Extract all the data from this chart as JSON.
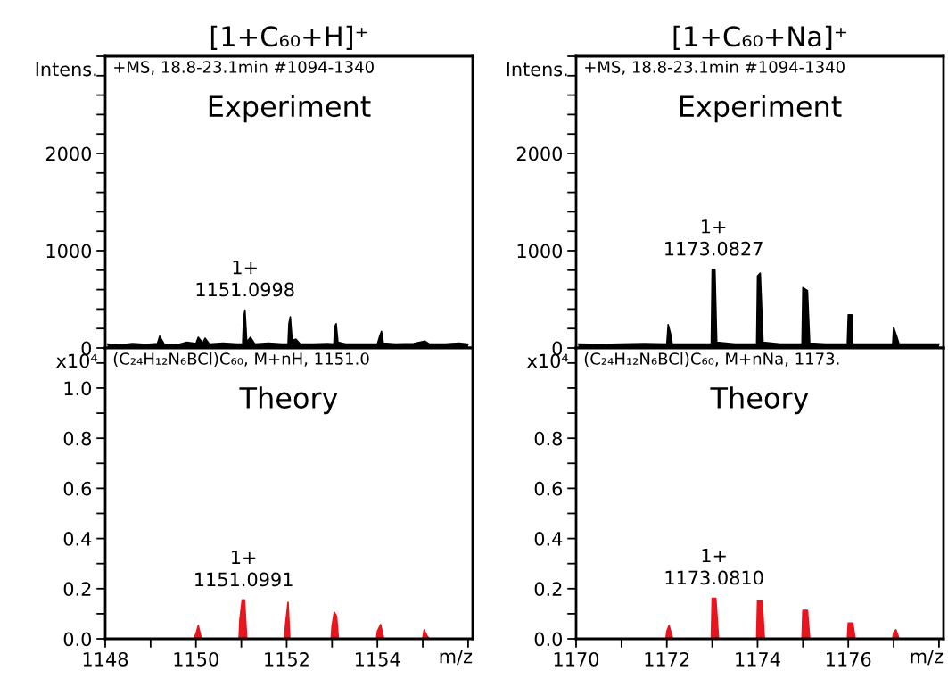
{
  "chart_data": [
    {
      "type": "area",
      "title": "[1+C₆₀+H]⁺",
      "ylabel": "Intens.",
      "tick_labels": "y",
      "xlim": [
        1148,
        1156.1
      ],
      "ylim": [
        0,
        3000
      ],
      "yticks": [
        0,
        {
          "value": 200,
          "label": null
        },
        {
          "value": 400,
          "label": null
        },
        {
          "value": 600,
          "label": null
        },
        {
          "value": 800,
          "label": null
        },
        1000,
        {
          "value": 1200,
          "label": null
        },
        {
          "value": 1400,
          "label": null
        },
        {
          "value": 1600,
          "label": null
        },
        {
          "value": 1800,
          "label": null
        },
        2000,
        {
          "value": 2200,
          "label": null
        },
        {
          "value": 2400,
          "label": null
        },
        {
          "value": 2600,
          "label": null
        },
        {
          "value": 2800,
          "label": null
        },
        {
          "value": 3000,
          "label": null
        }
      ],
      "series": [
        {
          "color": "#000000",
          "x": [
            1148.05,
            1148.3,
            1148.6,
            1148.9,
            1149.15,
            1149.2,
            1149.3,
            1149.6,
            1149.8,
            1150.0,
            1150.05,
            1150.15,
            1150.2,
            1150.3,
            1150.6,
            1150.9,
            1151.03,
            1151.05,
            1151.08,
            1151.12,
            1151.2,
            1151.3,
            1151.6,
            1151.9,
            1152.03,
            1152.05,
            1152.08,
            1152.12,
            1152.2,
            1152.3,
            1152.6,
            1152.9,
            1153.04,
            1153.06,
            1153.09,
            1153.13,
            1153.3,
            1153.6,
            1154.0,
            1154.05,
            1154.09,
            1154.13,
            1154.4,
            1154.8,
            1155.05,
            1155.15,
            1155.5,
            1155.8,
            1156.0
          ],
          "values": [
            40,
            30,
            45,
            35,
            45,
            120,
            40,
            35,
            60,
            45,
            110,
            50,
            100,
            40,
            50,
            40,
            40,
            300,
            390,
            60,
            110,
            40,
            50,
            40,
            40,
            250,
            320,
            80,
            90,
            40,
            40,
            45,
            40,
            220,
            250,
            60,
            40,
            40,
            40,
            120,
            170,
            50,
            40,
            45,
            70,
            40,
            40,
            50,
            40
          ]
        }
      ],
      "annotations": [
        "+MS, 18.8-23.1min #1094-1340",
        "Experiment",
        {
          "text": "1+\n1151.0998",
          "x": 1151.08,
          "y": 390
        }
      ]
    },
    {
      "type": "area",
      "title": "[1+C₆₀+Na]⁺",
      "ylabel": "Intens.",
      "tick_labels": "y",
      "xlim": [
        1170,
        1178.1
      ],
      "ylim": [
        0,
        3000
      ],
      "yticks": [
        0,
        {
          "value": 200,
          "label": null
        },
        {
          "value": 400,
          "label": null
        },
        {
          "value": 600,
          "label": null
        },
        {
          "value": 800,
          "label": null
        },
        1000,
        {
          "value": 1200,
          "label": null
        },
        {
          "value": 1400,
          "label": null
        },
        {
          "value": 1600,
          "label": null
        },
        {
          "value": 1800,
          "label": null
        },
        2000,
        {
          "value": 2200,
          "label": null
        },
        {
          "value": 2400,
          "label": null
        },
        {
          "value": 2600,
          "label": null
        },
        {
          "value": 2800,
          "label": null
        },
        {
          "value": 3000,
          "label": null
        }
      ],
      "series": [
        {
          "color": "#000000",
          "x": [
            1170.05,
            1170.5,
            1171.0,
            1171.5,
            1172.0,
            1172.03,
            1172.08,
            1172.12,
            1172.5,
            1172.98,
            1173.0,
            1173.06,
            1173.1,
            1173.5,
            1173.98,
            1174.0,
            1174.06,
            1174.12,
            1174.5,
            1174.98,
            1175.0,
            1175.1,
            1175.15,
            1175.5,
            1175.98,
            1176.0,
            1176.08,
            1176.1,
            1176.5,
            1176.98,
            1177.0,
            1177.08,
            1177.12,
            1177.5,
            1178.0
          ],
          "values": [
            40,
            35,
            40,
            45,
            40,
            240,
            150,
            40,
            40,
            40,
            810,
            810,
            60,
            40,
            40,
            740,
            770,
            60,
            40,
            40,
            620,
            590,
            50,
            40,
            40,
            340,
            340,
            40,
            40,
            40,
            210,
            100,
            40,
            40,
            40
          ]
        }
      ],
      "annotations": [
        "+MS, 18.8-23.1min #1094-1340",
        "Experiment",
        {
          "text": "1+\n1173.0827",
          "x": 1173.03,
          "y": 810
        }
      ]
    },
    {
      "type": "area",
      "ylabel": "x10⁴",
      "xlabel": "m/z",
      "xlim": [
        1148,
        1156.1
      ],
      "ylim": [
        0,
        1.16
      ],
      "xticks": [
        1148,
        {
          "value": 1149,
          "label": null
        },
        1150,
        {
          "value": 1151,
          "label": null
        },
        1152,
        {
          "value": 1153,
          "label": null
        },
        1154,
        {
          "value": 1155,
          "label": null
        },
        {
          "value": 1156,
          "label": null
        }
      ],
      "yticks": [
        {
          "value": 0,
          "label": "0.0"
        },
        {
          "value": 0.1,
          "label": null
        },
        {
          "value": 0.2,
          "label": "0.2"
        },
        {
          "value": 0.3,
          "label": null
        },
        {
          "value": 0.4,
          "label": "0.4"
        },
        {
          "value": 0.5,
          "label": null
        },
        {
          "value": 0.6,
          "label": "0.6"
        },
        {
          "value": 0.7,
          "label": null
        },
        {
          "value": 0.8,
          "label": "0.8"
        },
        {
          "value": 0.9,
          "label": null
        },
        {
          "value": 1.0,
          "label": "1.0"
        },
        {
          "value": 1.1,
          "label": null
        }
      ],
      "series": [
        {
          "color": "#e8141e",
          "x": [
            1148.0,
            1149.95,
            1150.0,
            1150.05,
            1150.12,
            1150.95,
            1150.97,
            1151.02,
            1151.07,
            1151.12,
            1151.95,
            1151.98,
            1152.03,
            1152.07,
            1152.98,
            1153.0,
            1153.05,
            1153.1,
            1153.14,
            1153.98,
            1154.0,
            1154.07,
            1154.14,
            1155.0,
            1155.03,
            1155.1,
            1155.15,
            1156.0
          ],
          "values": [
            0,
            0,
            0.02,
            0.053,
            0,
            0,
            0.08,
            0.155,
            0.155,
            0,
            0,
            0.065,
            0.146,
            0,
            0,
            0.05,
            0.106,
            0.09,
            0,
            0,
            0.03,
            0.057,
            0,
            0,
            0.035,
            0.01,
            0,
            0
          ]
        }
      ],
      "annotations": [
        "(C₂₄H₁₂N₆BCl)C₆₀, M+nH, 1151.0",
        "Theory",
        {
          "text": "1+\n1151.0991",
          "x": 1151.05,
          "y": 0.155
        }
      ]
    },
    {
      "type": "area",
      "ylabel": "x10⁴",
      "xlabel": "m/z",
      "xlim": [
        1170,
        1178.1
      ],
      "ylim": [
        0,
        1.16
      ],
      "xticks": [
        1170,
        {
          "value": 1171,
          "label": null
        },
        1172,
        {
          "value": 1173,
          "label": null
        },
        1174,
        {
          "value": 1175,
          "label": null
        },
        1176,
        {
          "value": 1177,
          "label": null
        },
        {
          "value": 1178,
          "label": null
        }
      ],
      "yticks": [
        {
          "value": 0,
          "label": "0.0"
        },
        {
          "value": 0.1,
          "label": null
        },
        {
          "value": 0.2,
          "label": "0.2"
        },
        {
          "value": 0.3,
          "label": null
        },
        {
          "value": 0.4,
          "label": "0.4"
        },
        {
          "value": 0.5,
          "label": null
        },
        {
          "value": 0.6,
          "label": "0.6"
        },
        {
          "value": 0.7,
          "label": null
        },
        {
          "value": 0.8,
          "label": "0.8"
        },
        {
          "value": 0.9,
          "label": null
        },
        {
          "value": 1.0,
          "label": null
        },
        {
          "value": 1.1,
          "label": null
        }
      ],
      "series": [
        {
          "color": "#e8141e",
          "x": [
            1170.0,
            1171.98,
            1172.0,
            1172.05,
            1172.13,
            1172.98,
            1173.0,
            1173.08,
            1173.14,
            1173.98,
            1174.0,
            1174.1,
            1174.15,
            1174.98,
            1175.0,
            1175.1,
            1175.15,
            1175.98,
            1176.0,
            1176.1,
            1176.15,
            1176.98,
            1177.0,
            1177.05,
            1177.12,
            1178.0
          ],
          "values": [
            0,
            0,
            0.03,
            0.053,
            0,
            0,
            0.162,
            0.162,
            0,
            0,
            0.152,
            0.152,
            0,
            0,
            0.114,
            0.114,
            0,
            0,
            0.063,
            0.063,
            0,
            0,
            0.025,
            0.036,
            0,
            0
          ]
        }
      ],
      "annotations": [
        "(C₂₄H₁₂N₆BCl)C₆₀, M+nNa, 1173.",
        "Theory",
        {
          "text": "1+\n1173.0810",
          "x": 1173.04,
          "y": 0.162
        }
      ]
    }
  ]
}
